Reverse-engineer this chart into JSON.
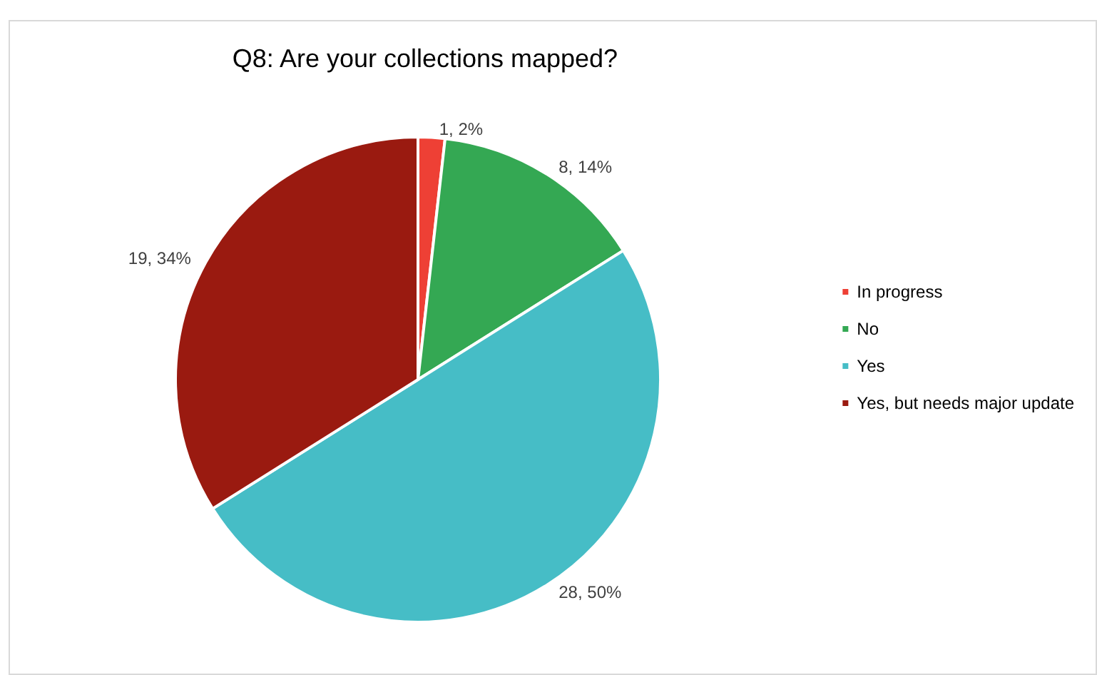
{
  "chart_data": {
    "type": "pie",
    "title": "Q8: Are your collections mapped?",
    "categories": [
      "In progress",
      "No",
      "Yes",
      "Yes, but needs major update"
    ],
    "values": [
      1,
      8,
      28,
      19
    ],
    "colors": [
      "#ee4035",
      "#34a853",
      "#46bdc6",
      "#9a1a10"
    ],
    "value_labels": [
      "1, 2%",
      "8, 14%",
      "28, 50%",
      "19, 34%"
    ],
    "legend": "right"
  }
}
